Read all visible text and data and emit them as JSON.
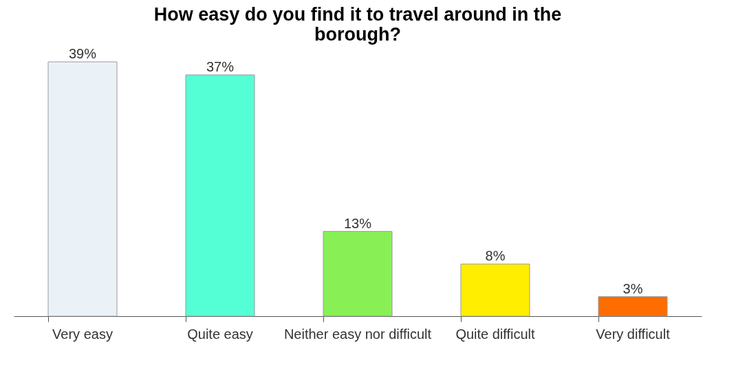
{
  "chart_data": {
    "type": "bar",
    "title": "How easy do you find it to travel around in the borough?",
    "categories": [
      "Very easy",
      "Quite easy",
      "Neither easy nor difficult",
      "Quite difficult",
      "Very difficult"
    ],
    "values": [
      39,
      37,
      13,
      8,
      3
    ],
    "value_labels": [
      "39%",
      "37%",
      "13%",
      "8%",
      "3%"
    ],
    "colors": [
      "#eaf2f8",
      "#55ffd5",
      "#88f055",
      "#ffee00",
      "#ff6d00"
    ],
    "grid": false,
    "tick_labels": "x"
  }
}
